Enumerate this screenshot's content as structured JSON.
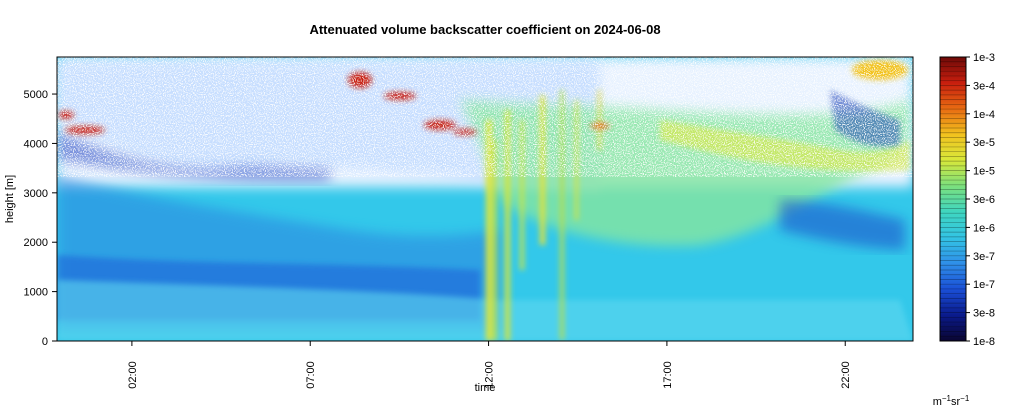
{
  "chart_data": {
    "type": "heatmap",
    "title": "Attenuated volume backscatter coefficient on 2024-06-08",
    "xlabel": "time",
    "ylabel": "height [m]",
    "x_ticks": [
      "02:00",
      "07:00",
      "12:00",
      "17:00",
      "22:00"
    ],
    "x_tick_hours": [
      2,
      7,
      12,
      17,
      22
    ],
    "xlim_hours": [
      -0.1,
      23.9
    ],
    "y_ticks": [
      "0",
      "1000",
      "2000",
      "3000",
      "4000",
      "5000"
    ],
    "y_tick_values": [
      0,
      1000,
      2000,
      3000,
      4000,
      5000
    ],
    "ylim": [
      0,
      5750
    ],
    "colorbar": {
      "scale": "log",
      "labels": [
        "1e-3",
        "3e-4",
        "1e-4",
        "3e-5",
        "1e-5",
        "3e-6",
        "1e-6",
        "3e-7",
        "1e-7",
        "3e-8",
        "1e-8"
      ],
      "unit_main": "m",
      "unit_sup1": "−1",
      "unit_mid": "sr",
      "unit_sup2": "−1",
      "colors": [
        "#0a0530",
        "#0a1a8c",
        "#1a4fd6",
        "#2f8fe8",
        "#33c4e4",
        "#3fd6c0",
        "#7be07e",
        "#d8e83a",
        "#f2c21e",
        "#e86b12",
        "#c81e0e",
        "#6e0a08"
      ]
    },
    "features": [
      {
        "name": "noise-region",
        "description_level": "sparse noise aloft"
      },
      {
        "name": "aerosol-layer",
        "level": "3e-7 to 1e-6"
      },
      {
        "name": "cloud-layer",
        "level": "1e-4 to 1e-3"
      }
    ]
  }
}
